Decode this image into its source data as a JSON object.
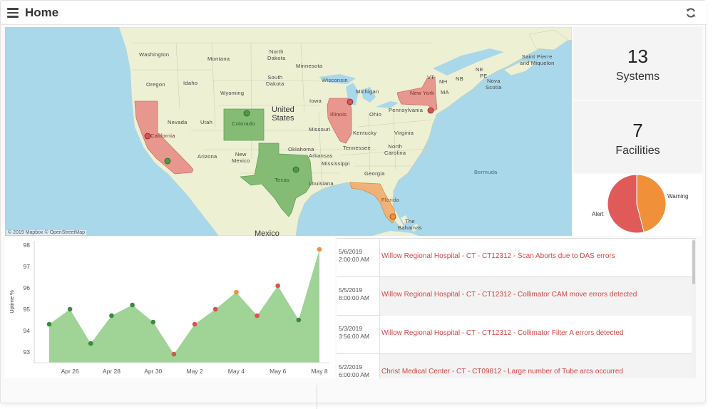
{
  "header": {
    "title": "Home",
    "menu_icon": "hamburger-menu-icon",
    "refresh_icon": "refresh-icon"
  },
  "map": {
    "attribution": "© 2019 Mapbox © OpenStreetMap",
    "colors": {
      "water": "#a9d8ea",
      "land": "#eef0d4",
      "alert": "#e07a74",
      "warning": "#f2a65a",
      "ok": "#6bb35f"
    },
    "labels": {
      "washington": "Washington",
      "montana": "Montana",
      "north_dakota": "North\nDakota",
      "minnesota": "Minnesota",
      "oregon": "Oregon",
      "idaho": "Idaho",
      "wyoming": "Wyoming",
      "south_dakota": "South\nDakota",
      "wisconsin": "Wisconsin",
      "michigan": "Michigan",
      "iowa": "Iowa",
      "illinois": "Illinois",
      "ohio": "Ohio",
      "pennsylvania": "Pennsylvania",
      "new_york": "New York",
      "nevada": "Nevada",
      "utah": "Utah",
      "colorado": "Colorado",
      "california": "California",
      "united_states": "United\nStates",
      "missouri": "Missouri",
      "kentucky": "Kentucky",
      "virginia": "Virginia",
      "arizona": "Arizona",
      "new_mexico": "New\nMexico",
      "oklahoma": "Oklahoma",
      "arkansas": "Arkansas",
      "tennessee": "Tennessee",
      "north_carolina": "North\nCarolina",
      "mississippi": "Mississippi",
      "texas": "Texas",
      "georgia": "Georgia",
      "louisiana": "Louisiana",
      "florida": "Florida",
      "the_bahamas": "The\nBahamas",
      "mexico": "Mexico",
      "bermuda": "Bermuda",
      "saint_pierre": "Saint Pierre\nand Miquelon",
      "ne": "NE",
      "nova_scotia": "Nova\nScotia",
      "pe": "PE",
      "nb": "NB",
      "vt": "VT",
      "nh": "NH",
      "ma": "MA"
    }
  },
  "kpis": {
    "systems": {
      "value": "13",
      "label": "Systems"
    },
    "facilities": {
      "value": "7",
      "label": "Facilities"
    }
  },
  "pie": {
    "slices": [
      {
        "label": "Alert",
        "value": 54,
        "color": "#e05a5a"
      },
      {
        "label": "Warning",
        "value": 46,
        "color": "#f0913a"
      }
    ]
  },
  "chart_data": {
    "type": "area",
    "ylabel": "Uptime %",
    "ylim": [
      92.5,
      98.2
    ],
    "yticks": [
      93,
      94,
      95,
      96,
      97,
      98
    ],
    "xtick_labels": [
      "Apr 26",
      "Apr 28",
      "Apr 30",
      "May 2",
      "May 4",
      "May 6",
      "May 8"
    ],
    "xtick_index": [
      1,
      3,
      5,
      7,
      9,
      11,
      13
    ],
    "points": [
      {
        "x": "Apr 25",
        "y": 94.3,
        "status": "ok"
      },
      {
        "x": "Apr 26",
        "y": 95.0,
        "status": "ok"
      },
      {
        "x": "Apr 27",
        "y": 93.4,
        "status": "ok"
      },
      {
        "x": "Apr 28",
        "y": 94.7,
        "status": "ok"
      },
      {
        "x": "Apr 29",
        "y": 95.2,
        "status": "ok"
      },
      {
        "x": "Apr 30",
        "y": 94.4,
        "status": "ok"
      },
      {
        "x": "May 1",
        "y": 92.9,
        "status": "alert"
      },
      {
        "x": "May 2",
        "y": 94.3,
        "status": "alert"
      },
      {
        "x": "May 3",
        "y": 95.0,
        "status": "alert"
      },
      {
        "x": "May 4",
        "y": 95.8,
        "status": "warning"
      },
      {
        "x": "May 5",
        "y": 94.7,
        "status": "alert"
      },
      {
        "x": "May 6",
        "y": 96.1,
        "status": "alert"
      },
      {
        "x": "May 7",
        "y": 94.5,
        "status": "ok"
      },
      {
        "x": "May 8",
        "y": 97.8,
        "status": "warning"
      }
    ],
    "colors": {
      "area": "#8fcb84",
      "ok": "#3d8a3d",
      "alert": "#d9534f",
      "warning": "#f0913a"
    }
  },
  "events": [
    {
      "date": "5/6/2019",
      "time": "2:00:00 AM",
      "message": "Willow Regional Hospital - CT - CT12312 - Scan Aborts due to DAS errors"
    },
    {
      "date": "5/5/2019",
      "time": "8:00:00 AM",
      "message": "Willow Regional Hospital - CT - CT12312 - Collimator CAM move errors detected"
    },
    {
      "date": "5/3/2019",
      "time": "3:56:00 AM",
      "message": "Willow Regional Hospital - CT - CT12312 - Collimator Filter A errors detected"
    },
    {
      "date": "5/2/2019",
      "time": "6:00:00 AM",
      "message": "Christ Medical Center - CT - CT09812 - Large number of Tube arcs occurred"
    }
  ]
}
